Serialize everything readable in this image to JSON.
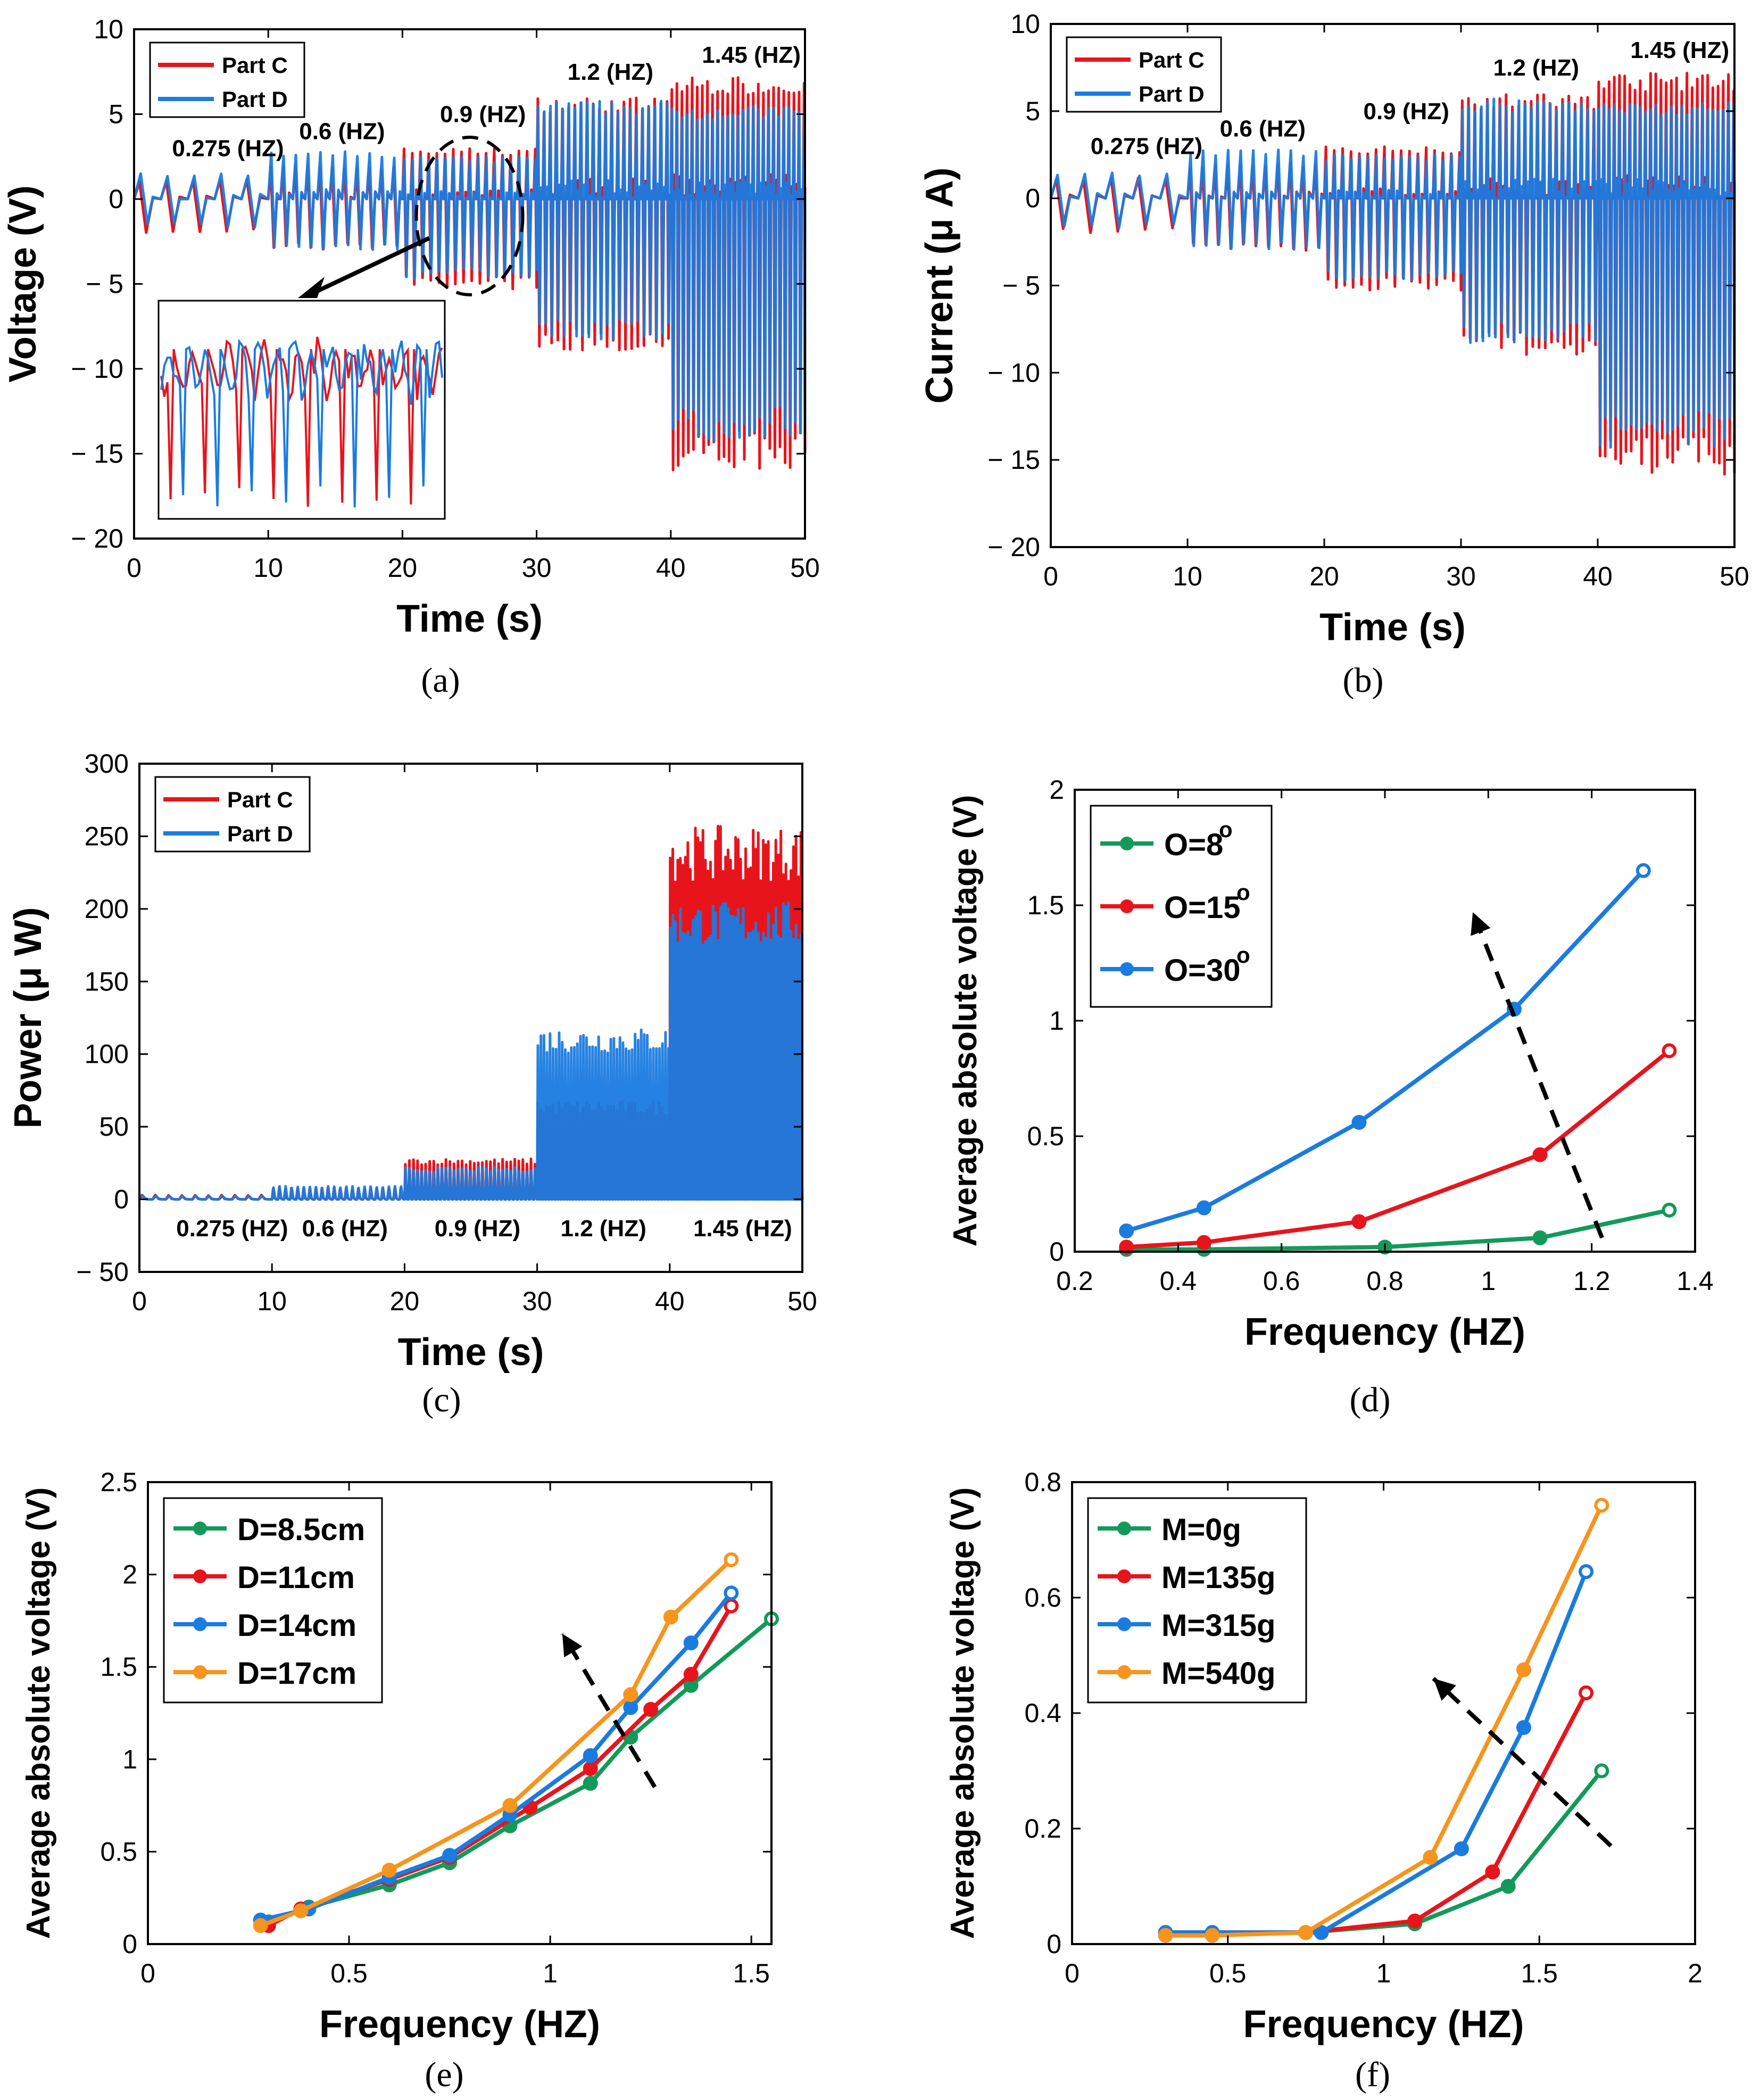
{
  "colors": {
    "red": "#e8141c",
    "blue": "#1a7be0",
    "green": "#139a5a",
    "orange": "#f7941d",
    "axis": "#000000"
  },
  "chart_data": [
    {
      "panel": "a",
      "caption": "(a)",
      "type": "line",
      "xlabel": "Time (s)",
      "ylabel": "Voltage (V)",
      "xlim": [
        0,
        50
      ],
      "ylim": [
        -20,
        10
      ],
      "xticks": [
        0,
        10,
        20,
        30,
        40,
        50
      ],
      "yticks": [
        10,
        5,
        0,
        -5,
        -10,
        -15,
        -20
      ],
      "ytick_labels": [
        "10",
        "5",
        "0",
        "− 5",
        "− 10",
        "− 15",
        "− 20"
      ],
      "legend": [
        "Part C",
        "Part D"
      ],
      "legend_position": "top-left",
      "annotations": [
        "0.275 (HZ)",
        "0.6 (HZ)",
        "0.9 (HZ)",
        "1.2 (HZ)",
        "1.45 (HZ)"
      ],
      "inset": "zoomed view of 20-30 s segment",
      "series": [
        {
          "name": "Part C",
          "segments": [
            {
              "t": [
                0,
                10
              ],
              "freq": 0.275,
              "max": 1.2,
              "min": -2
            },
            {
              "t": [
                10,
                20
              ],
              "freq": 0.6,
              "max": 2,
              "min": -3
            },
            {
              "t": [
                20,
                30
              ],
              "freq": 0.9,
              "max": 3,
              "min": -5.3
            },
            {
              "t": [
                30,
                40
              ],
              "freq": 1.2,
              "max": 6,
              "min": -9
            },
            {
              "t": [
                40,
                50
              ],
              "freq": 1.45,
              "max": 7.2,
              "min": -16
            }
          ]
        },
        {
          "name": "Part D",
          "segments": [
            {
              "t": [
                0,
                10
              ],
              "freq": 0.275,
              "max": 1.5,
              "min": -1.7
            },
            {
              "t": [
                10,
                20
              ],
              "freq": 0.6,
              "max": 2.8,
              "min": -3
            },
            {
              "t": [
                20,
                30
              ],
              "freq": 0.9,
              "max": 2.5,
              "min": -4.8
            },
            {
              "t": [
                30,
                40
              ],
              "freq": 1.2,
              "max": 5.8,
              "min": -8.3
            },
            {
              "t": [
                40,
                50
              ],
              "freq": 1.45,
              "max": 5.5,
              "min": -14.3
            }
          ]
        }
      ]
    },
    {
      "panel": "b",
      "caption": "(b)",
      "type": "line",
      "xlabel": "Time (s)",
      "ylabel": "Current (μ A)",
      "xlim": [
        0,
        50
      ],
      "ylim": [
        -20,
        10
      ],
      "xticks": [
        0,
        10,
        20,
        30,
        40,
        50
      ],
      "yticks": [
        10,
        5,
        0,
        -5,
        -10,
        -15,
        -20
      ],
      "ytick_labels": [
        "10",
        "5",
        "0",
        "− 5",
        "− 10",
        "− 15",
        "− 20"
      ],
      "legend": [
        "Part C",
        "Part D"
      ],
      "legend_position": "top-left",
      "annotations": [
        "0.275 (HZ)",
        "0.6 (HZ)",
        "0.9 (HZ)",
        "1.2 (HZ)",
        "1.45 (HZ)"
      ],
      "series": [
        {
          "name": "Part C",
          "segments": [
            {
              "t": [
                0,
                10
              ],
              "freq": 0.275,
              "max": 1.2,
              "min": -2
            },
            {
              "t": [
                10,
                20
              ],
              "freq": 0.6,
              "max": 2,
              "min": -3
            },
            {
              "t": [
                20,
                30
              ],
              "freq": 0.9,
              "max": 3,
              "min": -5.3
            },
            {
              "t": [
                30,
                40
              ],
              "freq": 1.2,
              "max": 6,
              "min": -9
            },
            {
              "t": [
                40,
                50
              ],
              "freq": 1.45,
              "max": 7.2,
              "min": -16
            }
          ]
        },
        {
          "name": "Part D",
          "segments": [
            {
              "t": [
                0,
                10
              ],
              "freq": 0.275,
              "max": 1.5,
              "min": -1.7
            },
            {
              "t": [
                10,
                20
              ],
              "freq": 0.6,
              "max": 2.8,
              "min": -3
            },
            {
              "t": [
                20,
                30
              ],
              "freq": 0.9,
              "max": 2.5,
              "min": -4.8
            },
            {
              "t": [
                30,
                40
              ],
              "freq": 1.2,
              "max": 5.8,
              "min": -8.3
            },
            {
              "t": [
                40,
                50
              ],
              "freq": 1.45,
              "max": 5.5,
              "min": -14.3
            }
          ]
        }
      ]
    },
    {
      "panel": "c",
      "caption": "(c)",
      "type": "line",
      "xlabel": "Time (s)",
      "ylabel": "Power (μ W)",
      "xlim": [
        0,
        50
      ],
      "ylim": [
        -50,
        300
      ],
      "xticks": [
        0,
        10,
        20,
        30,
        40,
        50
      ],
      "yticks": [
        300,
        250,
        200,
        150,
        100,
        50,
        0,
        -50
      ],
      "ytick_labels": [
        "300",
        "250",
        "200",
        "150",
        "100",
        "50",
        "0",
        "− 50"
      ],
      "legend": [
        "Part C",
        "Part D"
      ],
      "legend_position": "top-left",
      "annotations": [
        "0.275 (HZ)",
        "0.6 (HZ)",
        "0.9 (HZ)",
        "1.2 (HZ)",
        "1.45 (HZ)"
      ],
      "series": [
        {
          "name": "Part C",
          "segments": [
            {
              "t": [
                0,
                10
              ],
              "freq": 0.275,
              "max": 3,
              "min": 0
            },
            {
              "t": [
                10,
                20
              ],
              "freq": 0.6,
              "max": 8,
              "min": 0
            },
            {
              "t": [
                20,
                30
              ],
              "freq": 0.9,
              "max": 28,
              "min": 0
            },
            {
              "t": [
                30,
                40
              ],
              "freq": 1.2,
              "max": 68,
              "min": 0
            },
            {
              "t": [
                40,
                50
              ],
              "freq": 1.45,
              "max": 257,
              "min": 0
            }
          ]
        },
        {
          "name": "Part D",
          "segments": [
            {
              "t": [
                0,
                10
              ],
              "freq": 0.275,
              "max": 2.5,
              "min": 0
            },
            {
              "t": [
                10,
                20
              ],
              "freq": 0.6,
              "max": 9,
              "min": 0
            },
            {
              "t": [
                20,
                30
              ],
              "freq": 0.9,
              "max": 22,
              "min": 0
            },
            {
              "t": [
                30,
                40
              ],
              "freq": 1.2,
              "max": 118,
              "min": 0
            },
            {
              "t": [
                40,
                50
              ],
              "freq": 1.45,
              "max": 205,
              "min": 0
            }
          ]
        }
      ]
    },
    {
      "panel": "d",
      "caption": "(d)",
      "type": "line",
      "xlabel": "Frequency (HZ)",
      "ylabel": "Average absolute voltage (V)",
      "xlim": [
        0.2,
        1.4
      ],
      "ylim": [
        0,
        2
      ],
      "xticks": [
        0.2,
        0.4,
        0.6,
        0.8,
        1,
        1.2,
        1.4
      ],
      "xtick_labels": [
        "0.2",
        "0.4",
        "0.6",
        "0.8",
        "1",
        "1.2",
        "1.4"
      ],
      "yticks": [
        0,
        0.5,
        1,
        1.5,
        2
      ],
      "ytick_labels": [
        "0",
        "0.5",
        "1",
        "1.5",
        "2"
      ],
      "legend_position": "top-left",
      "arrow": {
        "from": [
          1.22,
          0.06
        ],
        "to": [
          0.97,
          1.47
        ]
      },
      "series": [
        {
          "name": "O=8",
          "label_main": "O=8",
          "label_sup": "o",
          "x": [
            0.3,
            0.45,
            0.8,
            1.1,
            1.35
          ],
          "y": [
            0.01,
            0.01,
            0.02,
            0.06,
            0.18
          ]
        },
        {
          "name": "O=15",
          "label_main": "O=15",
          "label_sup": "o",
          "x": [
            0.3,
            0.45,
            0.75,
            1.1,
            1.35
          ],
          "y": [
            0.02,
            0.04,
            0.13,
            0.42,
            0.87
          ]
        },
        {
          "name": "O=30",
          "label_main": "O=30",
          "label_sup": "o",
          "x": [
            0.3,
            0.45,
            0.75,
            1.05,
            1.3
          ],
          "y": [
            0.09,
            0.19,
            0.56,
            1.05,
            1.65
          ]
        }
      ]
    },
    {
      "panel": "e",
      "caption": "(e)",
      "type": "line",
      "xlabel": "Frequency (HZ)",
      "ylabel": "Average absolute voltage (V)",
      "xlim": [
        0,
        1.55
      ],
      "ylim": [
        0,
        2.5
      ],
      "xticks": [
        0,
        0.5,
        1,
        1.5
      ],
      "xtick_labels": [
        "0",
        "0.5",
        "1",
        "1.5"
      ],
      "yticks": [
        0,
        0.5,
        1,
        1.5,
        2,
        2.5
      ],
      "ytick_labels": [
        "0",
        "0.5",
        "1",
        "1.5",
        "2",
        "2.5"
      ],
      "legend_position": "top-left",
      "arrow": {
        "from": [
          1.26,
          0.85
        ],
        "to": [
          1.03,
          1.68
        ]
      },
      "series": [
        {
          "name": "D=8.5cm",
          "x": [
            0.3,
            0.4,
            0.6,
            0.75,
            0.9,
            1.1,
            1.2,
            1.35,
            1.55
          ],
          "y": [
            0.12,
            0.2,
            0.32,
            0.44,
            0.64,
            0.87,
            1.12,
            1.4,
            1.76
          ]
        },
        {
          "name": "D=11cm",
          "x": [
            0.3,
            0.38,
            0.6,
            0.75,
            0.95,
            1.1,
            1.25,
            1.35,
            1.45
          ],
          "y": [
            0.1,
            0.19,
            0.35,
            0.47,
            0.74,
            0.95,
            1.27,
            1.46,
            1.83
          ]
        },
        {
          "name": "D=14cm",
          "x": [
            0.28,
            0.4,
            0.6,
            0.75,
            0.9,
            1.1,
            1.2,
            1.35,
            1.45
          ],
          "y": [
            0.13,
            0.19,
            0.36,
            0.48,
            0.7,
            1.02,
            1.28,
            1.63,
            1.9
          ]
        },
        {
          "name": "D=17cm",
          "x": [
            0.28,
            0.38,
            0.6,
            0.9,
            1.2,
            1.3,
            1.45
          ],
          "y": [
            0.1,
            0.18,
            0.4,
            0.75,
            1.35,
            1.77,
            2.08
          ]
        }
      ]
    },
    {
      "panel": "f",
      "caption": "(f)",
      "type": "line",
      "xlabel": "Frequency (HZ)",
      "ylabel": "Average absolute voltage (V)",
      "xlim": [
        0,
        2
      ],
      "ylim": [
        0,
        0.8
      ],
      "xticks": [
        0,
        0.5,
        1,
        1.5,
        2
      ],
      "xtick_labels": [
        "0",
        "0.5",
        "1",
        "1.5",
        "2"
      ],
      "yticks": [
        0,
        0.2,
        0.4,
        0.6,
        0.8
      ],
      "ytick_labels": [
        "0",
        "0.2",
        "0.4",
        "0.6",
        "0.8"
      ],
      "legend_position": "top-left",
      "arrow": {
        "from": [
          1.73,
          0.17
        ],
        "to": [
          1.16,
          0.46
        ]
      },
      "series": [
        {
          "name": "M=0g",
          "x": [
            0.3,
            0.45,
            0.75,
            1.1,
            1.4,
            1.7
          ],
          "y": [
            0.02,
            0.02,
            0.02,
            0.035,
            0.1,
            0.3
          ]
        },
        {
          "name": "M=135g",
          "x": [
            0.3,
            0.45,
            0.75,
            1.1,
            1.35,
            1.65
          ],
          "y": [
            0.02,
            0.02,
            0.02,
            0.04,
            0.125,
            0.435
          ]
        },
        {
          "name": "M=315g",
          "x": [
            0.3,
            0.45,
            0.8,
            1.25,
            1.45,
            1.65
          ],
          "y": [
            0.02,
            0.02,
            0.02,
            0.165,
            0.375,
            0.645
          ]
        },
        {
          "name": "M=540g",
          "x": [
            0.3,
            0.45,
            0.75,
            1.15,
            1.45,
            1.7
          ],
          "y": [
            0.015,
            0.015,
            0.02,
            0.15,
            0.475,
            0.76
          ]
        }
      ]
    }
  ]
}
